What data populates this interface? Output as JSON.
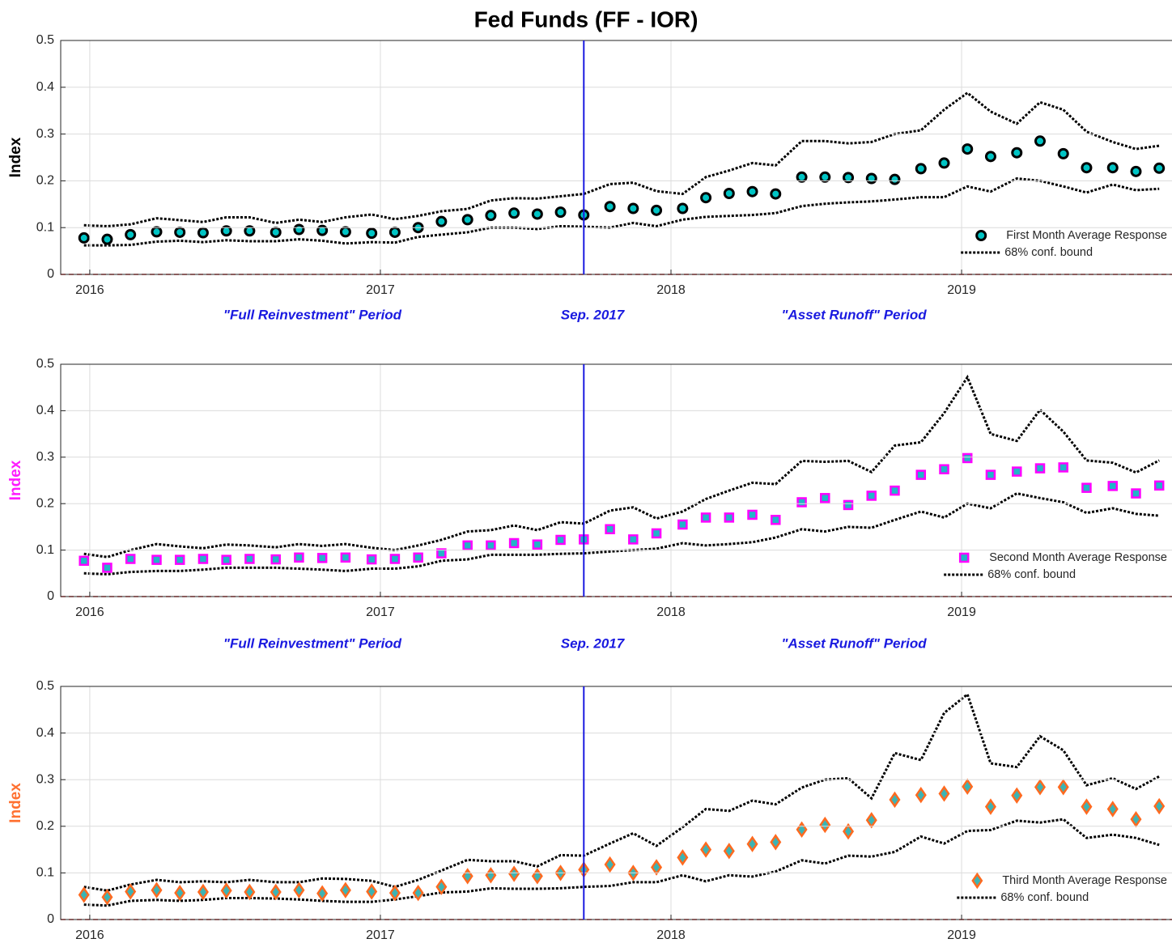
{
  "chart_data": [
    {
      "type": "scatter",
      "title": "Fed Funds (FF - IOR)",
      "ylabel": "Index",
      "ylabel_color": "#000000",
      "xlim": [
        2015.9,
        2019.724
      ],
      "xticks": [
        2016,
        2017,
        2018,
        2019
      ],
      "ylim": [
        0,
        0.5
      ],
      "yticks": [
        0,
        0.1,
        0.2,
        0.3,
        0.4,
        0.5
      ],
      "grid": true,
      "vline": 2017.7,
      "vline_color": "#1a1ae0",
      "hline": 0,
      "hline_color": "#e03030",
      "legend": "lower right",
      "annotations": [
        "\"Full Reinvestment\" Period",
        "Sep. 2017",
        "\"Asset Runoff\" Period"
      ],
      "annotation_color": "#1a1ae0",
      "x": [
        2015.98,
        2016.06,
        2016.14,
        2016.23,
        2016.31,
        2016.39,
        2016.47,
        2016.55,
        2016.64,
        2016.72,
        2016.8,
        2016.88,
        2016.97,
        2017.05,
        2017.13,
        2017.21,
        2017.3,
        2017.38,
        2017.46,
        2017.54,
        2017.62,
        2017.7,
        2017.79,
        2017.87,
        2017.95,
        2018.04,
        2018.12,
        2018.2,
        2018.28,
        2018.36,
        2018.45,
        2018.53,
        2018.61,
        2018.69,
        2018.77,
        2018.86,
        2018.94,
        2019.02,
        2019.1,
        2019.19,
        2019.27,
        2019.35,
        2019.43,
        2019.52,
        2019.6,
        2019.68
      ],
      "series": [
        {
          "name": "First Month Average Response",
          "marker": "circle",
          "color": "#00c4c4",
          "edge_color": "#000000",
          "values": [
            0.078,
            0.075,
            0.085,
            0.091,
            0.09,
            0.089,
            0.093,
            0.093,
            0.09,
            0.096,
            0.094,
            0.091,
            0.088,
            0.09,
            0.1,
            0.113,
            0.117,
            0.126,
            0.131,
            0.129,
            0.133,
            0.127,
            0.145,
            0.141,
            0.137,
            0.141,
            0.164,
            0.173,
            0.177,
            0.172,
            0.208,
            0.208,
            0.207,
            0.205,
            0.203,
            0.226,
            0.238,
            0.268,
            0.252,
            0.26,
            0.285,
            0.258,
            0.228,
            0.228,
            0.22,
            0.227
          ]
        }
      ],
      "band": {
        "name": "68% conf. bound",
        "color": "#000000",
        "upper": [
          0.105,
          0.103,
          0.107,
          0.12,
          0.116,
          0.112,
          0.122,
          0.122,
          0.11,
          0.117,
          0.112,
          0.122,
          0.128,
          0.118,
          0.125,
          0.135,
          0.14,
          0.158,
          0.163,
          0.162,
          0.167,
          0.172,
          0.193,
          0.196,
          0.178,
          0.172,
          0.208,
          0.222,
          0.238,
          0.233,
          0.285,
          0.285,
          0.28,
          0.283,
          0.3,
          0.308,
          0.352,
          0.388,
          0.348,
          0.322,
          0.368,
          0.352,
          0.305,
          0.283,
          0.268,
          0.275
        ],
        "lower": [
          0.062,
          0.062,
          0.063,
          0.07,
          0.072,
          0.069,
          0.073,
          0.071,
          0.071,
          0.075,
          0.072,
          0.066,
          0.069,
          0.068,
          0.08,
          0.085,
          0.09,
          0.1,
          0.1,
          0.097,
          0.103,
          0.102,
          0.1,
          0.11,
          0.103,
          0.117,
          0.123,
          0.125,
          0.127,
          0.131,
          0.146,
          0.151,
          0.154,
          0.156,
          0.16,
          0.165,
          0.165,
          0.188,
          0.177,
          0.205,
          0.2,
          0.188,
          0.175,
          0.192,
          0.18,
          0.183
        ]
      }
    },
    {
      "type": "scatter",
      "ylabel": "Index",
      "ylabel_color": "#ff1aff",
      "xlim": [
        2015.9,
        2019.724
      ],
      "xticks": [
        2016,
        2017,
        2018,
        2019
      ],
      "ylim": [
        0,
        0.5
      ],
      "yticks": [
        0,
        0.1,
        0.2,
        0.3,
        0.4,
        0.5
      ],
      "grid": true,
      "vline": 2017.7,
      "vline_color": "#1a1ae0",
      "hline": 0,
      "hline_color": "#e03030",
      "legend": "lower right",
      "annotations": [
        "\"Full Reinvestment\" Period",
        "Sep. 2017",
        "\"Asset Runoff\" Period"
      ],
      "annotation_color": "#1a1ae0",
      "x": [
        2015.98,
        2016.06,
        2016.14,
        2016.23,
        2016.31,
        2016.39,
        2016.47,
        2016.55,
        2016.64,
        2016.72,
        2016.8,
        2016.88,
        2016.97,
        2017.05,
        2017.13,
        2017.21,
        2017.3,
        2017.38,
        2017.46,
        2017.54,
        2017.62,
        2017.7,
        2017.79,
        2017.87,
        2017.95,
        2018.04,
        2018.12,
        2018.2,
        2018.28,
        2018.36,
        2018.45,
        2018.53,
        2018.61,
        2018.69,
        2018.77,
        2018.86,
        2018.94,
        2019.02,
        2019.1,
        2019.19,
        2019.27,
        2019.35,
        2019.43,
        2019.52,
        2019.6,
        2019.68
      ],
      "series": [
        {
          "name": "Second Month Average Response",
          "marker": "square",
          "color": "#22b4c8",
          "edge_color": "#ff00ff",
          "values": [
            0.077,
            0.062,
            0.081,
            0.079,
            0.079,
            0.081,
            0.079,
            0.081,
            0.08,
            0.084,
            0.083,
            0.084,
            0.08,
            0.081,
            0.084,
            0.093,
            0.11,
            0.11,
            0.115,
            0.112,
            0.122,
            0.123,
            0.145,
            0.123,
            0.136,
            0.155,
            0.17,
            0.17,
            0.176,
            0.165,
            0.203,
            0.212,
            0.197,
            0.217,
            0.228,
            0.262,
            0.274,
            0.298,
            0.262,
            0.269,
            0.276,
            0.278,
            0.234,
            0.238,
            0.222,
            0.239
          ]
        }
      ],
      "band": {
        "name": "68% conf. bound",
        "color": "#000000",
        "upper": [
          0.092,
          0.085,
          0.1,
          0.113,
          0.108,
          0.104,
          0.112,
          0.11,
          0.106,
          0.113,
          0.109,
          0.113,
          0.105,
          0.1,
          0.11,
          0.122,
          0.14,
          0.143,
          0.153,
          0.143,
          0.16,
          0.157,
          0.185,
          0.192,
          0.168,
          0.183,
          0.21,
          0.228,
          0.245,
          0.242,
          0.292,
          0.29,
          0.292,
          0.268,
          0.325,
          0.332,
          0.395,
          0.472,
          0.35,
          0.335,
          0.402,
          0.355,
          0.293,
          0.288,
          0.267,
          0.293
        ],
        "lower": [
          0.05,
          0.048,
          0.053,
          0.055,
          0.055,
          0.058,
          0.062,
          0.062,
          0.062,
          0.06,
          0.058,
          0.055,
          0.06,
          0.06,
          0.065,
          0.077,
          0.08,
          0.09,
          0.09,
          0.09,
          0.092,
          0.093,
          0.097,
          0.1,
          0.103,
          0.115,
          0.11,
          0.113,
          0.117,
          0.127,
          0.145,
          0.14,
          0.15,
          0.148,
          0.165,
          0.183,
          0.17,
          0.2,
          0.19,
          0.222,
          0.212,
          0.203,
          0.18,
          0.19,
          0.178,
          0.174
        ]
      }
    },
    {
      "type": "scatter",
      "ylabel": "Index",
      "ylabel_color": "#ff7030",
      "xlim": [
        2015.9,
        2019.724
      ],
      "xticks": [
        2016,
        2017,
        2018,
        2019
      ],
      "ylim": [
        0,
        0.5
      ],
      "yticks": [
        0,
        0.1,
        0.2,
        0.3,
        0.4,
        0.5
      ],
      "grid": true,
      "vline": 2017.7,
      "vline_color": "#1a1ae0",
      "hline": 0,
      "hline_color": "#e03030",
      "legend": "lower right",
      "x": [
        2015.98,
        2016.06,
        2016.14,
        2016.23,
        2016.31,
        2016.39,
        2016.47,
        2016.55,
        2016.64,
        2016.72,
        2016.8,
        2016.88,
        2016.97,
        2017.05,
        2017.13,
        2017.21,
        2017.3,
        2017.38,
        2017.46,
        2017.54,
        2017.62,
        2017.7,
        2017.79,
        2017.87,
        2017.95,
        2018.04,
        2018.12,
        2018.2,
        2018.28,
        2018.36,
        2018.45,
        2018.53,
        2018.61,
        2018.69,
        2018.77,
        2018.86,
        2018.94,
        2019.02,
        2019.1,
        2019.19,
        2019.27,
        2019.35,
        2019.43,
        2019.52,
        2019.6,
        2019.68
      ],
      "series": [
        {
          "name": "Third Month Average Response",
          "marker": "diamond",
          "color": "#3cb4b4",
          "edge_color": "#ff6a20",
          "values": [
            0.053,
            0.048,
            0.06,
            0.063,
            0.057,
            0.059,
            0.062,
            0.059,
            0.059,
            0.063,
            0.056,
            0.063,
            0.06,
            0.057,
            0.057,
            0.07,
            0.093,
            0.095,
            0.098,
            0.093,
            0.1,
            0.107,
            0.118,
            0.1,
            0.112,
            0.133,
            0.15,
            0.147,
            0.162,
            0.166,
            0.193,
            0.203,
            0.189,
            0.213,
            0.257,
            0.267,
            0.27,
            0.285,
            0.242,
            0.266,
            0.284,
            0.284,
            0.242,
            0.237,
            0.215,
            0.243
          ]
        }
      ],
      "band": {
        "name": "68% conf. bound",
        "color": "#000000",
        "upper": [
          0.07,
          0.062,
          0.075,
          0.085,
          0.08,
          0.082,
          0.08,
          0.085,
          0.08,
          0.08,
          0.088,
          0.087,
          0.083,
          0.07,
          0.085,
          0.105,
          0.128,
          0.125,
          0.125,
          0.114,
          0.138,
          0.137,
          0.163,
          0.185,
          0.158,
          0.198,
          0.237,
          0.233,
          0.255,
          0.247,
          0.283,
          0.3,
          0.303,
          0.26,
          0.357,
          0.342,
          0.443,
          0.483,
          0.335,
          0.327,
          0.393,
          0.363,
          0.288,
          0.303,
          0.28,
          0.307
        ],
        "lower": [
          0.032,
          0.03,
          0.04,
          0.042,
          0.04,
          0.042,
          0.046,
          0.046,
          0.045,
          0.043,
          0.04,
          0.038,
          0.038,
          0.043,
          0.05,
          0.058,
          0.06,
          0.067,
          0.066,
          0.066,
          0.067,
          0.07,
          0.072,
          0.08,
          0.08,
          0.095,
          0.082,
          0.095,
          0.092,
          0.103,
          0.127,
          0.12,
          0.137,
          0.135,
          0.145,
          0.178,
          0.163,
          0.19,
          0.192,
          0.212,
          0.208,
          0.215,
          0.175,
          0.182,
          0.175,
          0.16
        ]
      }
    }
  ]
}
